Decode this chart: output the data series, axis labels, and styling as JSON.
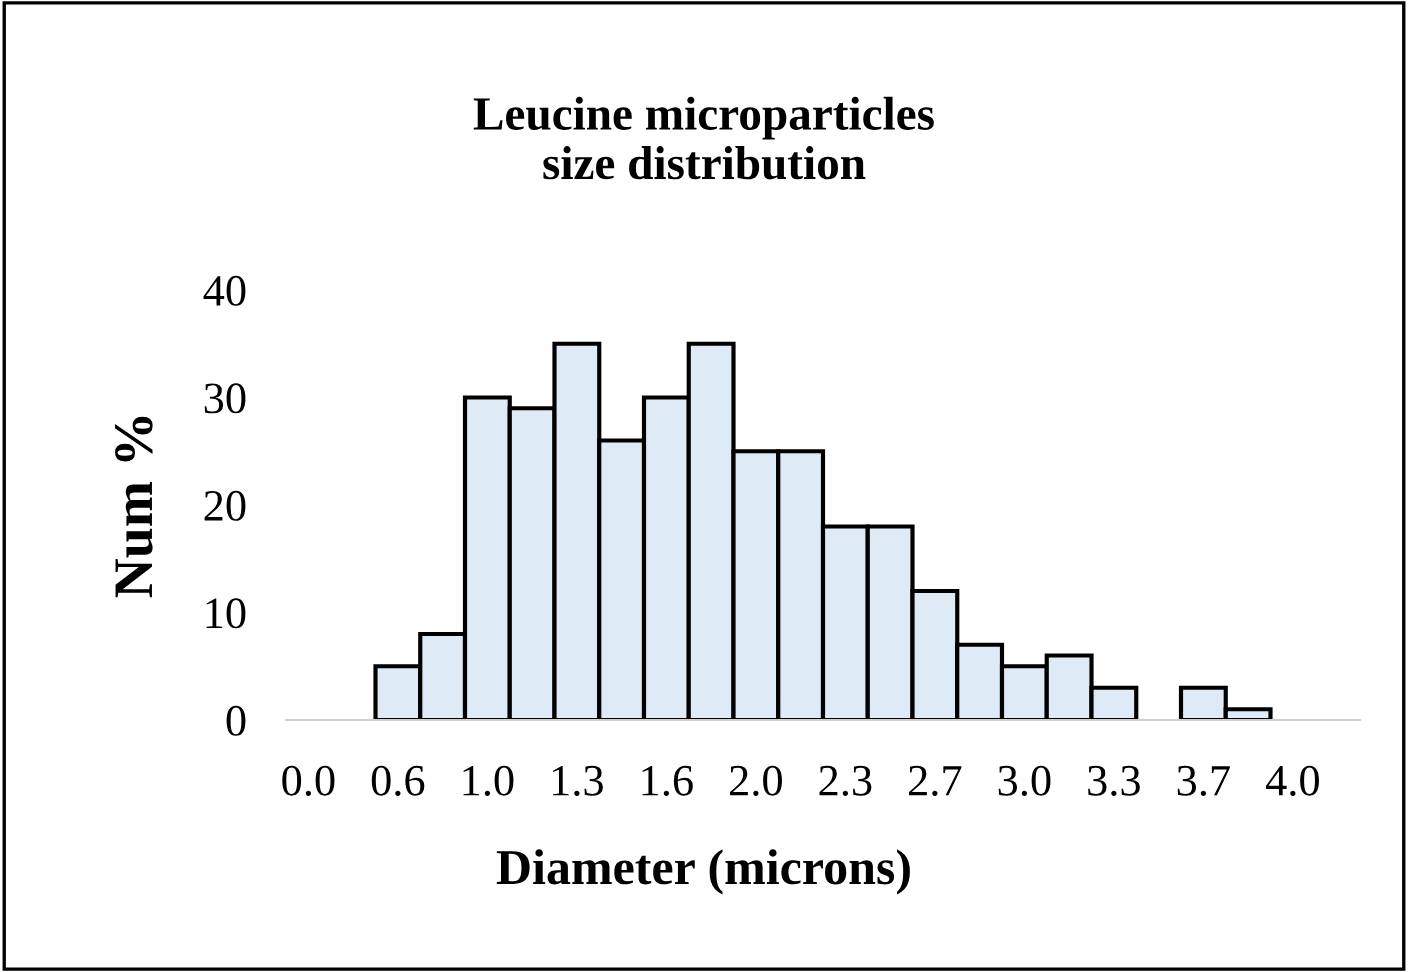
{
  "chart_data": {
    "type": "bar",
    "title": "Leucine microparticles\nsize distribution",
    "xlabel": "Diameter (microns)",
    "ylabel": "Num %",
    "categories": [
      "0.0",
      null,
      "0.6",
      null,
      "1.0",
      null,
      "1.3",
      null,
      "1.6",
      null,
      "2.0",
      null,
      "2.3",
      null,
      "2.7",
      null,
      "3.0",
      null,
      "3.3",
      null,
      "3.7",
      null,
      "4.0",
      null
    ],
    "values": [
      0,
      0,
      5,
      8,
      30,
      29,
      35,
      26,
      30,
      35,
      25,
      25,
      18,
      18,
      12,
      7,
      5,
      6,
      3,
      0,
      3,
      1,
      0,
      0
    ],
    "color": "#deeaf6",
    "ylim": [
      0,
      40
    ],
    "yticks": [
      0,
      10,
      20,
      30,
      40
    ],
    "grid": false,
    "legend": false
  }
}
